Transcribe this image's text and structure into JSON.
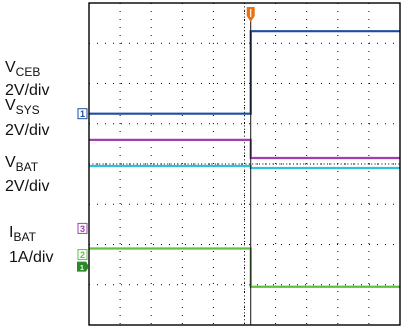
{
  "chart_data": {
    "type": "line",
    "grid": true,
    "x_divisions": 10,
    "y_divisions": 8,
    "trigger_time_div": 5.2,
    "series": [
      {
        "name_main": "V",
        "name_sub": "CEB",
        "scale": "2V/div",
        "marker": "1",
        "marker_level_div": 5.25,
        "color": "#1f4fa0",
        "before_div": 5.25,
        "after_div": 7.3
      },
      {
        "name_main": "V",
        "name_sub": "SYS",
        "scale": "2V/div",
        "marker": "3",
        "marker_level_div": 2.4,
        "color": "#a040b0",
        "before_div": 4.6,
        "after_div": 4.15
      },
      {
        "name_main": "V",
        "name_sub": "BAT",
        "scale": "2V/div",
        "marker": "",
        "marker_level_div": 3.95,
        "color": "#30c0d8",
        "before_div": 3.95,
        "after_div": 3.9
      },
      {
        "name_main": "I",
        "name_sub": "BAT",
        "scale": "1A/div",
        "marker": "2",
        "marker_level_div": 1.75,
        "color": "#60c040",
        "before_div": 1.9,
        "after_div": 0.95
      }
    ],
    "ground_marker": {
      "label": "1",
      "level_div": 1.45,
      "color": "#2a8a2a"
    },
    "trigger_marker": {
      "color": "#e87010"
    }
  }
}
